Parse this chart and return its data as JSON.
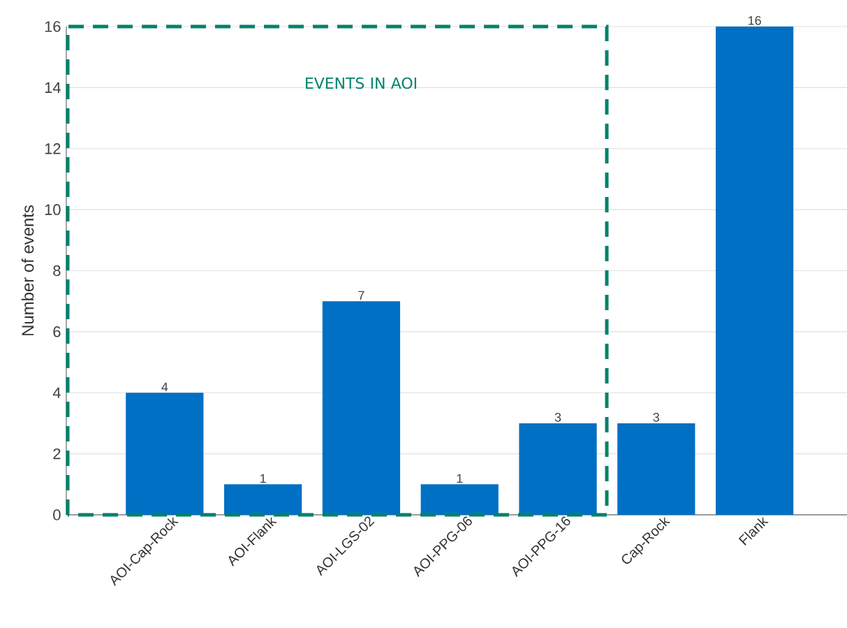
{
  "chart_data": {
    "type": "bar",
    "categories": [
      "AOI-Cap-Rock",
      "AOI-Flank",
      "AOI-LGS-02",
      "AOI-PPG-06",
      "AOI-PPG-16",
      "Cap-Rock",
      "Flank"
    ],
    "values": [
      4,
      1,
      7,
      1,
      3,
      3,
      16
    ],
    "color": "#0070c4",
    "ylabel": "Number of events",
    "ylim": [
      0,
      16
    ],
    "yticks": [
      0,
      2,
      4,
      6,
      8,
      10,
      12,
      14,
      16
    ],
    "grid": "y",
    "data_labels": true,
    "annotations": [
      "EVENTS IN AOI"
    ]
  }
}
